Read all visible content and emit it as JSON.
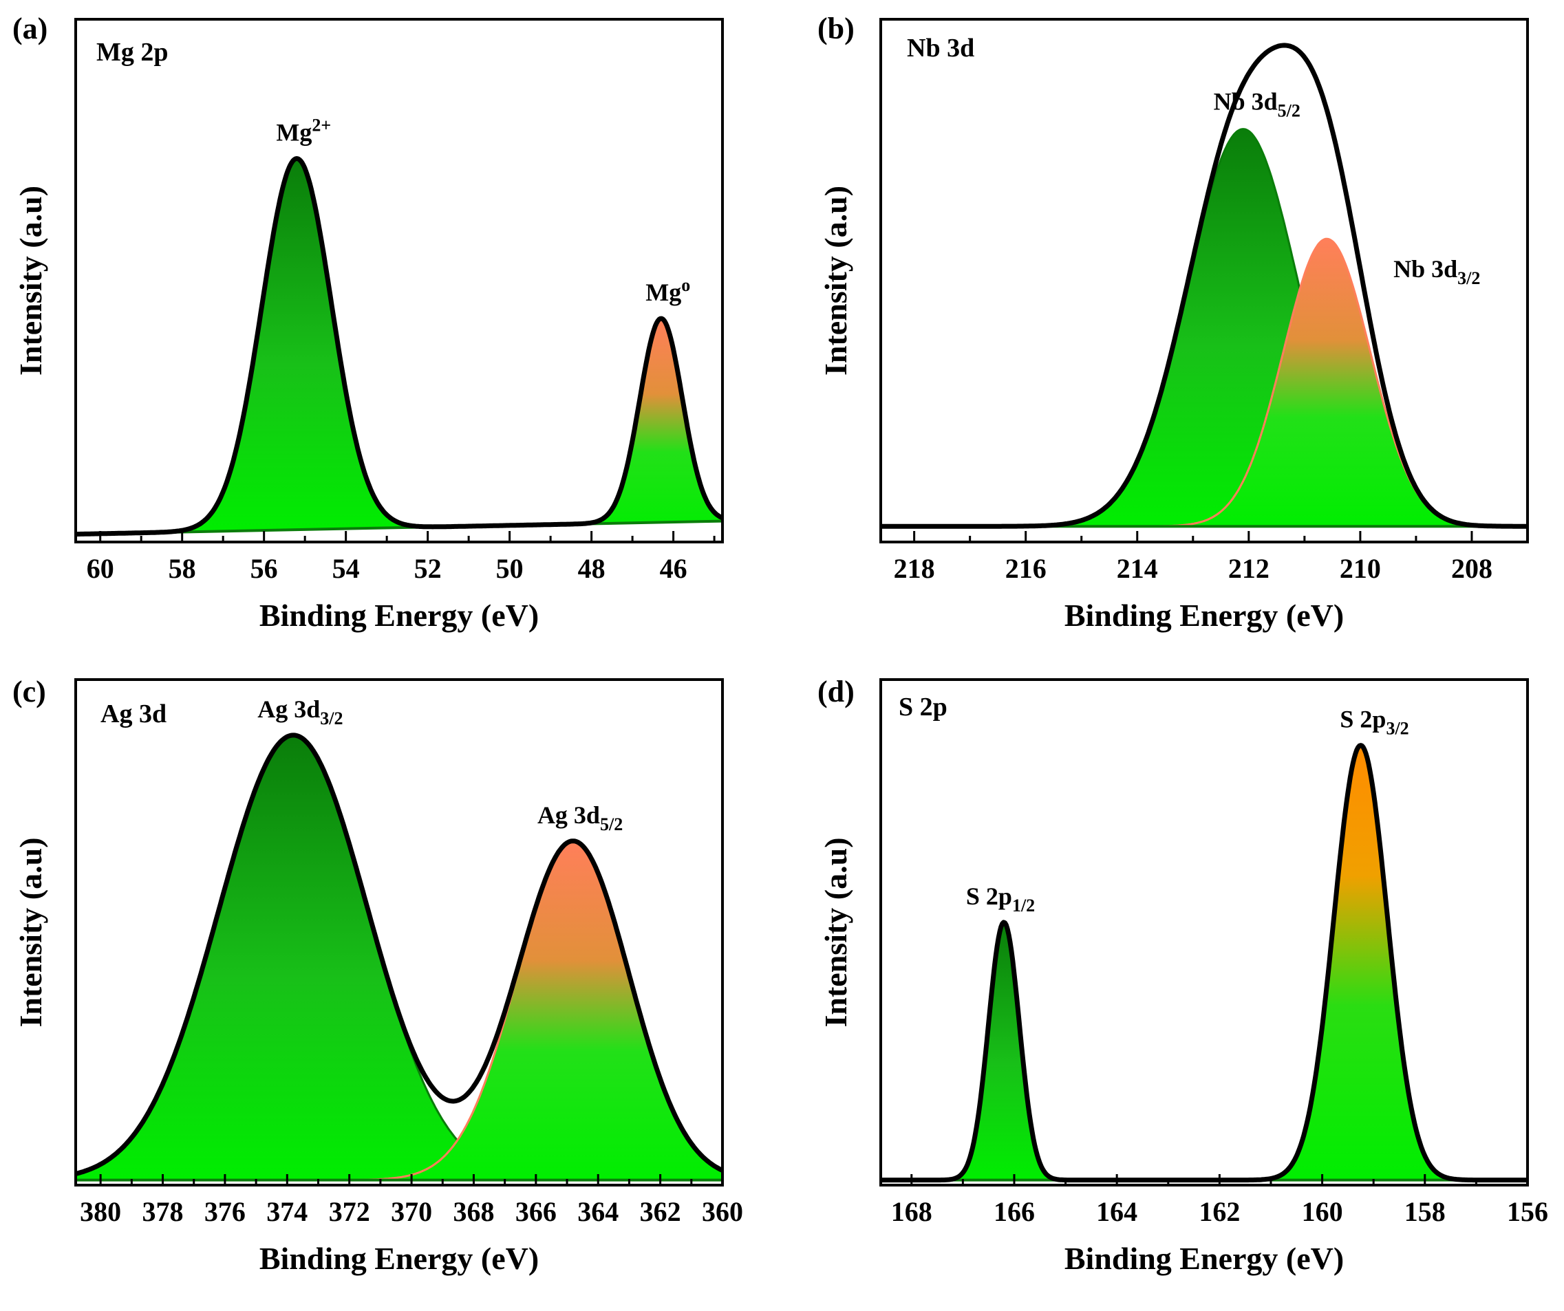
{
  "figure": {
    "panels": [
      {
        "letter": "(a)"
      },
      {
        "letter": "(b)"
      },
      {
        "letter": "(c)"
      },
      {
        "letter": "(d)"
      }
    ]
  },
  "colors": {
    "green_dark": "#0a7d0a",
    "green_bright": "#00ee00",
    "orange": "#ff8c1a",
    "salmon": "#ff7f5a",
    "envelope": "#000000",
    "frame": "#000000"
  },
  "chart_data": [
    {
      "type": "line",
      "title": "Mg 2p",
      "xlabel": "Binding Energy (eV)",
      "ylabel": "Intensity (a.u)",
      "xlim": [
        60.6,
        44.8
      ],
      "ylim": [
        0,
        1.0
      ],
      "xticks": [
        60,
        58,
        56,
        54,
        52,
        50,
        48,
        46
      ],
      "x_reversed": true,
      "grid": false,
      "baseline": {
        "x": [
          60.6,
          44.8
        ],
        "y": [
          0.015,
          0.04
        ]
      },
      "series": [
        {
          "name": "Mg2+",
          "label_main": "Mg",
          "label_sup": "2+",
          "center": 55.2,
          "height": 0.71,
          "sigma": 0.85,
          "fill": "green"
        },
        {
          "name": "Mg0",
          "label_main": "Mg",
          "label_sup": "o",
          "center": 46.3,
          "height": 0.39,
          "sigma": 0.52,
          "fill": "orange-green"
        }
      ]
    },
    {
      "type": "line",
      "title": "Nb 3d",
      "xlabel": "Binding Energy (eV)",
      "ylabel": "Intensity (a.u)",
      "xlim": [
        218.6,
        207
      ],
      "ylim": [
        0,
        1.0
      ],
      "xticks": [
        218,
        216,
        214,
        212,
        210,
        208
      ],
      "x_reversed": true,
      "grid": false,
      "baseline": {
        "x": [
          218.6,
          207
        ],
        "y": [
          0.03,
          0.03
        ]
      },
      "series": [
        {
          "name": "Nb 3d5/2",
          "label_main": "Nb 3d",
          "label_sub": "5/2",
          "center": 212.1,
          "height": 0.76,
          "sigma": 1.0,
          "fill": "green"
        },
        {
          "name": "Nb 3d3/2",
          "label_main": "Nb 3d",
          "label_sub": "3/2",
          "center": 210.6,
          "height": 0.55,
          "sigma": 0.78,
          "fill": "orange-green"
        }
      ]
    },
    {
      "type": "line",
      "title": "Ag 3d",
      "xlabel": "Binding Energy (eV)",
      "ylabel": "Intensity (a.u)",
      "xlim": [
        380.8,
        360
      ],
      "ylim": [
        0,
        1.0
      ],
      "xticks": [
        380,
        378,
        376,
        374,
        372,
        370,
        368,
        366,
        364,
        362,
        360
      ],
      "x_reversed": true,
      "grid": false,
      "baseline": {
        "x": [
          380.8,
          360
        ],
        "y": [
          0.01,
          0.01
        ]
      },
      "series": [
        {
          "name": "Ag 3d3/2",
          "label_main": "Ag 3d",
          "label_sub": "3/2",
          "center": 373.8,
          "height": 0.88,
          "sigma": 2.4,
          "fill": "green"
        },
        {
          "name": "Ag 3d5/2",
          "label_main": "Ag 3d",
          "label_sub": "5/2",
          "center": 364.8,
          "height": 0.67,
          "sigma": 1.8,
          "fill": "orange-green"
        }
      ]
    },
    {
      "type": "line",
      "title": "S 2p",
      "xlabel": "Binding Energy (eV)",
      "ylabel": "Intensity (a.u)",
      "xlim": [
        168.6,
        156
      ],
      "ylim": [
        0,
        1.0
      ],
      "xticks": [
        168,
        166,
        164,
        162,
        160,
        158,
        156
      ],
      "x_reversed": true,
      "grid": false,
      "baseline": {
        "x": [
          168.6,
          156
        ],
        "y": [
          0.01,
          0.01
        ]
      },
      "series": [
        {
          "name": "S 2p1/2",
          "label_main": "S 2p",
          "label_sub": "1/2",
          "center": 166.2,
          "height": 0.51,
          "sigma": 0.3,
          "fill": "green"
        },
        {
          "name": "S 2p3/2",
          "label_main": "S 2p",
          "label_sub": "3/2",
          "center": 159.25,
          "height": 0.86,
          "sigma": 0.52,
          "fill": "orange-green"
        }
      ]
    }
  ]
}
